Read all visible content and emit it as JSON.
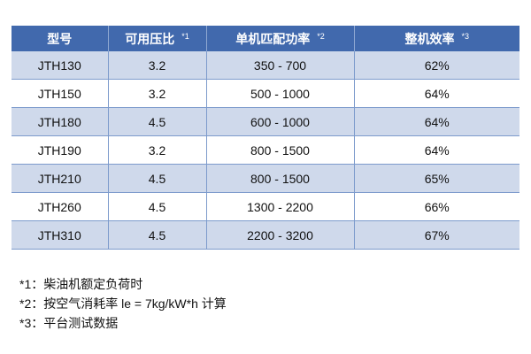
{
  "table": {
    "headers": [
      {
        "label": "型号",
        "note": ""
      },
      {
        "label": "可用压比",
        "note": "*1"
      },
      {
        "label": "单机匹配功率",
        "note": "*2"
      },
      {
        "label": "整机效率",
        "note": "*3"
      }
    ],
    "rows": [
      [
        "JTH130",
        "3.2",
        "350 - 700",
        "62%"
      ],
      [
        "JTH150",
        "3.2",
        "500 - 1000",
        "64%"
      ],
      [
        "JTH180",
        "4.5",
        "600 - 1000",
        "64%"
      ],
      [
        "JTH190",
        "3.2",
        "800 - 1500",
        "64%"
      ],
      [
        "JTH210",
        "4.5",
        "800 - 1500",
        "65%"
      ],
      [
        "JTH260",
        "4.5",
        "1300 - 2200",
        "66%"
      ],
      [
        "JTH310",
        "4.5",
        "2200 - 3200",
        "67%"
      ]
    ]
  },
  "notes": [
    "*1：柴油机额定负荷时",
    "*2：按空气消耗率  le = 7kg/kW*h  计算",
    "*3：平台测试数据"
  ]
}
